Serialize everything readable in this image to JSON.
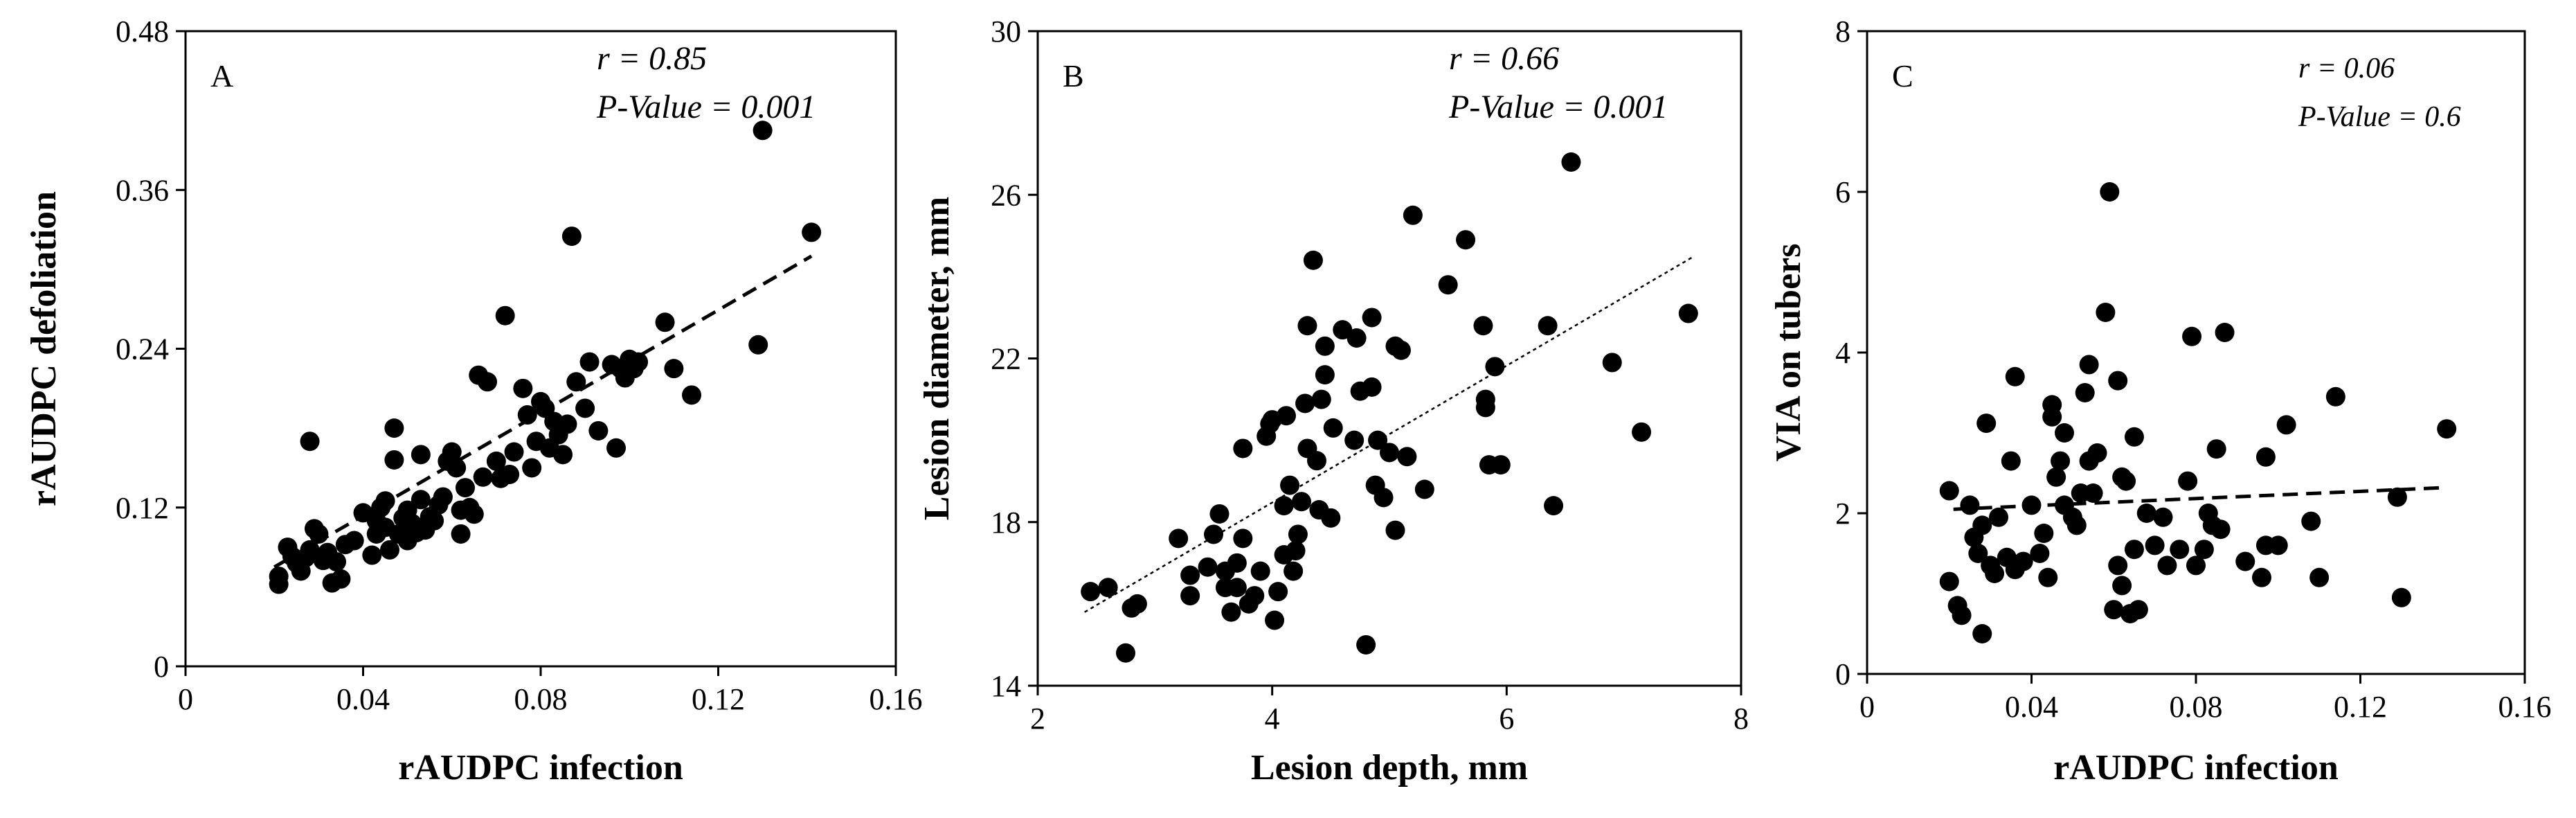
{
  "chart_data": [
    {
      "type": "scatter",
      "panel_label": "A",
      "xlabel": "rAUDPC infection",
      "ylabel": "rAUDPC defoliation",
      "xlim": [
        0,
        0.16
      ],
      "ylim": [
        0,
        0.48
      ],
      "xticks": [
        0,
        0.04,
        0.08,
        0.12,
        0.16
      ],
      "yticks": [
        0,
        0.12,
        0.24,
        0.36,
        0.48
      ],
      "xtick_labels": [
        "0",
        "0.04",
        "0.08",
        "0.12",
        "0.16"
      ],
      "ytick_labels": [
        "0",
        "0.12",
        "0.24",
        "0.36",
        "0.48"
      ],
      "annotations": [
        "r = 0.85",
        "P-Value = 0.001"
      ],
      "trendline": {
        "style": "dashed",
        "x": [
          0.02,
          0.141
        ],
        "y": [
          0.075,
          0.31
        ]
      },
      "points": [
        [
          0.021,
          0.062
        ],
        [
          0.021,
          0.068
        ],
        [
          0.023,
          0.09
        ],
        [
          0.024,
          0.083
        ],
        [
          0.025,
          0.078
        ],
        [
          0.026,
          0.072
        ],
        [
          0.027,
          0.082
        ],
        [
          0.028,
          0.088
        ],
        [
          0.028,
          0.17
        ],
        [
          0.029,
          0.104
        ],
        [
          0.03,
          0.1
        ],
        [
          0.031,
          0.08
        ],
        [
          0.032,
          0.086
        ],
        [
          0.033,
          0.063
        ],
        [
          0.034,
          0.079
        ],
        [
          0.035,
          0.066
        ],
        [
          0.036,
          0.092
        ],
        [
          0.038,
          0.095
        ],
        [
          0.04,
          0.116
        ],
        [
          0.042,
          0.084
        ],
        [
          0.043,
          0.1
        ],
        [
          0.043,
          0.11
        ],
        [
          0.044,
          0.12
        ],
        [
          0.045,
          0.125
        ],
        [
          0.045,
          0.105
        ],
        [
          0.046,
          0.088
        ],
        [
          0.047,
          0.156
        ],
        [
          0.047,
          0.18
        ],
        [
          0.048,
          0.1
        ],
        [
          0.049,
          0.112
        ],
        [
          0.05,
          0.095
        ],
        [
          0.05,
          0.118
        ],
        [
          0.051,
          0.108
        ],
        [
          0.052,
          0.101
        ],
        [
          0.053,
          0.126
        ],
        [
          0.053,
          0.16
        ],
        [
          0.054,
          0.103
        ],
        [
          0.055,
          0.113
        ],
        [
          0.056,
          0.11
        ],
        [
          0.057,
          0.122
        ],
        [
          0.058,
          0.128
        ],
        [
          0.059,
          0.155
        ],
        [
          0.06,
          0.162
        ],
        [
          0.061,
          0.15
        ],
        [
          0.062,
          0.118
        ],
        [
          0.062,
          0.1
        ],
        [
          0.063,
          0.135
        ],
        [
          0.064,
          0.12
        ],
        [
          0.065,
          0.115
        ],
        [
          0.066,
          0.22
        ],
        [
          0.067,
          0.143
        ],
        [
          0.068,
          0.215
        ],
        [
          0.07,
          0.155
        ],
        [
          0.071,
          0.142
        ],
        [
          0.072,
          0.265
        ],
        [
          0.073,
          0.145
        ],
        [
          0.074,
          0.162
        ],
        [
          0.076,
          0.21
        ],
        [
          0.077,
          0.19
        ],
        [
          0.078,
          0.15
        ],
        [
          0.079,
          0.17
        ],
        [
          0.08,
          0.2
        ],
        [
          0.081,
          0.195
        ],
        [
          0.082,
          0.165
        ],
        [
          0.083,
          0.185
        ],
        [
          0.084,
          0.175
        ],
        [
          0.085,
          0.16
        ],
        [
          0.086,
          0.183
        ],
        [
          0.087,
          0.325
        ],
        [
          0.088,
          0.215
        ],
        [
          0.09,
          0.195
        ],
        [
          0.091,
          0.23
        ],
        [
          0.093,
          0.178
        ],
        [
          0.096,
          0.228
        ],
        [
          0.097,
          0.165
        ],
        [
          0.098,
          0.225
        ],
        [
          0.099,
          0.218
        ],
        [
          0.1,
          0.232
        ],
        [
          0.101,
          0.225
        ],
        [
          0.102,
          0.23
        ],
        [
          0.108,
          0.26
        ],
        [
          0.11,
          0.225
        ],
        [
          0.114,
          0.205
        ],
        [
          0.129,
          0.243
        ],
        [
          0.13,
          0.405
        ],
        [
          0.141,
          0.328
        ]
      ]
    },
    {
      "type": "scatter",
      "panel_label": "B",
      "xlabel": "Lesion depth, mm",
      "ylabel": "Lesion diameter, mm",
      "xlim": [
        2,
        8
      ],
      "ylim": [
        14,
        30
      ],
      "xticks": [
        2,
        4,
        6,
        8
      ],
      "yticks": [
        14,
        18,
        22,
        26,
        30
      ],
      "xtick_labels": [
        "2",
        "4",
        "6",
        "8"
      ],
      "ytick_labels": [
        "14",
        "18",
        "22",
        "26",
        "30"
      ],
      "annotations": [
        "r = 0.66",
        "P-Value = 0.001"
      ],
      "trendline": {
        "style": "dotted",
        "x": [
          2.4,
          7.6
        ],
        "y": [
          15.8,
          24.5
        ]
      },
      "points": [
        [
          2.45,
          16.3
        ],
        [
          2.6,
          16.4
        ],
        [
          2.75,
          14.8
        ],
        [
          2.8,
          15.9
        ],
        [
          2.85,
          16.0
        ],
        [
          3.2,
          17.6
        ],
        [
          3.3,
          16.2
        ],
        [
          3.3,
          16.7
        ],
        [
          3.45,
          16.9
        ],
        [
          3.5,
          17.7
        ],
        [
          3.55,
          18.2
        ],
        [
          3.6,
          16.4
        ],
        [
          3.6,
          16.8
        ],
        [
          3.65,
          15.8
        ],
        [
          3.7,
          16.4
        ],
        [
          3.7,
          17.0
        ],
        [
          3.75,
          17.6
        ],
        [
          3.75,
          19.8
        ],
        [
          3.8,
          16.0
        ],
        [
          3.85,
          16.2
        ],
        [
          3.9,
          16.8
        ],
        [
          3.95,
          20.1
        ],
        [
          3.98,
          20.4
        ],
        [
          4.0,
          20.5
        ],
        [
          4.02,
          15.6
        ],
        [
          4.05,
          16.3
        ],
        [
          4.1,
          17.2
        ],
        [
          4.1,
          18.4
        ],
        [
          4.12,
          20.6
        ],
        [
          4.15,
          18.9
        ],
        [
          4.18,
          16.8
        ],
        [
          4.2,
          17.3
        ],
        [
          4.22,
          17.7
        ],
        [
          4.25,
          18.5
        ],
        [
          4.28,
          20.9
        ],
        [
          4.3,
          19.8
        ],
        [
          4.3,
          22.8
        ],
        [
          4.35,
          24.4
        ],
        [
          4.38,
          19.5
        ],
        [
          4.4,
          18.3
        ],
        [
          4.42,
          21.0
        ],
        [
          4.45,
          21.6
        ],
        [
          4.45,
          22.3
        ],
        [
          4.5,
          18.1
        ],
        [
          4.52,
          20.3
        ],
        [
          4.6,
          22.7
        ],
        [
          4.7,
          20.0
        ],
        [
          4.72,
          22.5
        ],
        [
          4.75,
          21.2
        ],
        [
          4.8,
          15.0
        ],
        [
          4.85,
          23.0
        ],
        [
          4.85,
          21.3
        ],
        [
          4.88,
          18.9
        ],
        [
          4.9,
          20.0
        ],
        [
          4.95,
          18.6
        ],
        [
          5.0,
          19.7
        ],
        [
          5.05,
          17.8
        ],
        [
          5.05,
          22.3
        ],
        [
          5.1,
          22.2
        ],
        [
          5.15,
          19.6
        ],
        [
          5.2,
          25.5
        ],
        [
          5.3,
          18.8
        ],
        [
          5.5,
          23.8
        ],
        [
          5.65,
          24.9
        ],
        [
          5.8,
          22.8
        ],
        [
          5.82,
          21.0
        ],
        [
          5.82,
          20.8
        ],
        [
          5.85,
          19.4
        ],
        [
          5.95,
          19.4
        ],
        [
          5.9,
          21.8
        ],
        [
          6.35,
          22.8
        ],
        [
          6.4,
          18.4
        ],
        [
          6.55,
          26.8
        ],
        [
          6.9,
          21.9
        ],
        [
          7.15,
          20.2
        ],
        [
          7.55,
          23.1
        ]
      ]
    },
    {
      "type": "scatter",
      "panel_label": "C",
      "xlabel": "rAUDPC infection",
      "ylabel": "VIA on tubers",
      "xlim": [
        0,
        0.16
      ],
      "ylim": [
        0,
        8
      ],
      "xticks": [
        0,
        0.04,
        0.08,
        0.12,
        0.16
      ],
      "yticks": [
        0,
        2,
        4,
        6,
        8
      ],
      "xtick_labels": [
        "0",
        "0.04",
        "0.08",
        "0.12",
        "0.16"
      ],
      "ytick_labels": [
        "0",
        "2",
        "4",
        "6",
        "8"
      ],
      "annotations": [
        "r = 0.06",
        "P-Value = 0.6"
      ],
      "trendline": {
        "style": "dashed",
        "x": [
          0.021,
          0.141
        ],
        "y": [
          2.05,
          2.32
        ]
      },
      "points": [
        [
          0.02,
          1.15
        ],
        [
          0.02,
          2.28
        ],
        [
          0.022,
          0.85
        ],
        [
          0.023,
          0.73
        ],
        [
          0.025,
          2.1
        ],
        [
          0.026,
          1.7
        ],
        [
          0.027,
          1.5
        ],
        [
          0.028,
          0.5
        ],
        [
          0.028,
          1.85
        ],
        [
          0.029,
          3.12
        ],
        [
          0.03,
          1.35
        ],
        [
          0.031,
          1.25
        ],
        [
          0.032,
          1.95
        ],
        [
          0.034,
          1.45
        ],
        [
          0.035,
          2.65
        ],
        [
          0.036,
          3.7
        ],
        [
          0.036,
          1.3
        ],
        [
          0.038,
          1.4
        ],
        [
          0.04,
          2.1
        ],
        [
          0.042,
          1.5
        ],
        [
          0.043,
          1.75
        ],
        [
          0.044,
          1.2
        ],
        [
          0.045,
          3.35
        ],
        [
          0.045,
          3.2
        ],
        [
          0.046,
          2.45
        ],
        [
          0.047,
          2.65
        ],
        [
          0.048,
          3.0
        ],
        [
          0.048,
          2.1
        ],
        [
          0.05,
          1.95
        ],
        [
          0.051,
          1.85
        ],
        [
          0.052,
          2.25
        ],
        [
          0.053,
          3.5
        ],
        [
          0.054,
          3.85
        ],
        [
          0.054,
          2.65
        ],
        [
          0.055,
          2.25
        ],
        [
          0.056,
          2.75
        ],
        [
          0.058,
          4.5
        ],
        [
          0.059,
          6.0
        ],
        [
          0.06,
          0.8
        ],
        [
          0.061,
          3.65
        ],
        [
          0.061,
          1.35
        ],
        [
          0.062,
          2.45
        ],
        [
          0.062,
          1.1
        ],
        [
          0.063,
          2.4
        ],
        [
          0.064,
          0.75
        ],
        [
          0.065,
          1.55
        ],
        [
          0.065,
          2.95
        ],
        [
          0.066,
          0.8
        ],
        [
          0.068,
          2.0
        ],
        [
          0.07,
          1.6
        ],
        [
          0.072,
          1.95
        ],
        [
          0.073,
          1.35
        ],
        [
          0.076,
          1.55
        ],
        [
          0.078,
          2.4
        ],
        [
          0.079,
          4.2
        ],
        [
          0.08,
          1.35
        ],
        [
          0.082,
          1.55
        ],
        [
          0.083,
          2.0
        ],
        [
          0.084,
          1.85
        ],
        [
          0.085,
          2.8
        ],
        [
          0.086,
          1.8
        ],
        [
          0.087,
          4.25
        ],
        [
          0.092,
          1.4
        ],
        [
          0.096,
          1.2
        ],
        [
          0.097,
          2.7
        ],
        [
          0.097,
          1.6
        ],
        [
          0.1,
          1.6
        ],
        [
          0.102,
          3.1
        ],
        [
          0.108,
          1.9
        ],
        [
          0.11,
          1.2
        ],
        [
          0.114,
          3.45
        ],
        [
          0.129,
          2.2
        ],
        [
          0.13,
          0.95
        ],
        [
          0.141,
          3.05
        ]
      ]
    }
  ]
}
